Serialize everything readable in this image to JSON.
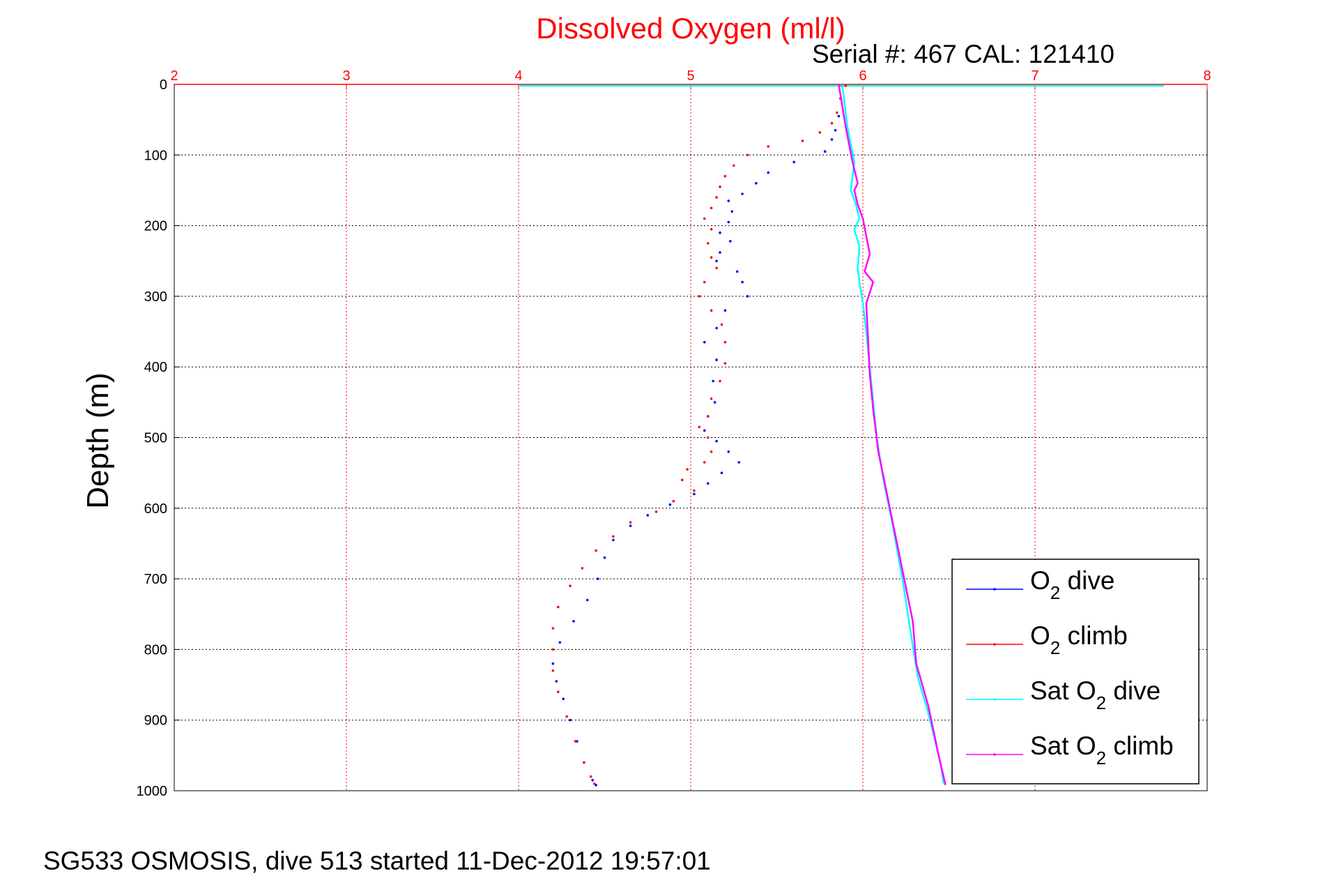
{
  "figure": {
    "title": "Dissolved Oxygen (ml/l)",
    "subtitle": "Serial #: 467  CAL: 121410",
    "ylabel": "Depth (m)",
    "footer": "SG533 OSMOSIS, dive 513 started 11-Dec-2012 19:57:01"
  },
  "colors": {
    "title": "#ff0000",
    "x_axis": "#ff0000",
    "y_axis": "#000000",
    "o2_dive": "#0000ff",
    "o2_climb": "#ff0000",
    "sat_o2_dive": "#00ffff",
    "sat_o2_climb": "#ff00ff"
  },
  "chart_data": {
    "type": "scatter",
    "xlim": [
      2,
      8
    ],
    "ylim": [
      0,
      1000
    ],
    "y_reversed": true,
    "x_axis_position": "top",
    "x_ticks": [
      2,
      3,
      4,
      5,
      6,
      7,
      8
    ],
    "y_ticks": [
      0,
      100,
      200,
      300,
      400,
      500,
      600,
      700,
      800,
      900,
      1000
    ],
    "grid": true,
    "legend_position": "bottom-right",
    "series": [
      {
        "key": "o2_dive",
        "legend_prefix": "O",
        "legend_sub": "2",
        "legend_suffix": " dive",
        "style": "dots",
        "points": [
          [
            5.88,
            2
          ],
          [
            5.87,
            20
          ],
          [
            5.86,
            45
          ],
          [
            5.84,
            65
          ],
          [
            5.82,
            78
          ],
          [
            5.78,
            95
          ],
          [
            5.6,
            110
          ],
          [
            5.45,
            125
          ],
          [
            5.38,
            140
          ],
          [
            5.3,
            155
          ],
          [
            5.22,
            165
          ],
          [
            5.24,
            180
          ],
          [
            5.22,
            195
          ],
          [
            5.17,
            210
          ],
          [
            5.23,
            222
          ],
          [
            5.17,
            238
          ],
          [
            5.15,
            250
          ],
          [
            5.27,
            265
          ],
          [
            5.3,
            280
          ],
          [
            5.33,
            300
          ],
          [
            5.2,
            320
          ],
          [
            5.15,
            345
          ],
          [
            5.08,
            365
          ],
          [
            5.15,
            390
          ],
          [
            5.13,
            420
          ],
          [
            5.14,
            450
          ],
          [
            5.1,
            470
          ],
          [
            5.08,
            490
          ],
          [
            5.15,
            505
          ],
          [
            5.22,
            520
          ],
          [
            5.28,
            535
          ],
          [
            5.18,
            550
          ],
          [
            5.1,
            565
          ],
          [
            5.02,
            580
          ],
          [
            4.88,
            595
          ],
          [
            4.75,
            610
          ],
          [
            4.65,
            625
          ],
          [
            4.55,
            645
          ],
          [
            4.5,
            670
          ],
          [
            4.46,
            700
          ],
          [
            4.4,
            730
          ],
          [
            4.32,
            760
          ],
          [
            4.24,
            790
          ],
          [
            4.2,
            820
          ],
          [
            4.22,
            845
          ],
          [
            4.26,
            870
          ],
          [
            4.3,
            900
          ],
          [
            4.34,
            930
          ],
          [
            4.38,
            960
          ],
          [
            4.43,
            985
          ],
          [
            4.45,
            992
          ]
        ]
      },
      {
        "key": "o2_climb",
        "legend_prefix": "O",
        "legend_sub": "2",
        "legend_suffix": " climb",
        "style": "dots",
        "points": [
          [
            5.9,
            2
          ],
          [
            5.87,
            20
          ],
          [
            5.85,
            40
          ],
          [
            5.82,
            55
          ],
          [
            5.75,
            68
          ],
          [
            5.65,
            80
          ],
          [
            5.45,
            88
          ],
          [
            5.33,
            100
          ],
          [
            5.25,
            115
          ],
          [
            5.2,
            130
          ],
          [
            5.17,
            145
          ],
          [
            5.15,
            160
          ],
          [
            5.12,
            175
          ],
          [
            5.08,
            190
          ],
          [
            5.12,
            205
          ],
          [
            5.1,
            225
          ],
          [
            5.12,
            245
          ],
          [
            5.15,
            260
          ],
          [
            5.08,
            280
          ],
          [
            5.05,
            300
          ],
          [
            5.12,
            320
          ],
          [
            5.18,
            340
          ],
          [
            5.2,
            365
          ],
          [
            5.2,
            395
          ],
          [
            5.17,
            420
          ],
          [
            5.12,
            445
          ],
          [
            5.1,
            470
          ],
          [
            5.05,
            485
          ],
          [
            5.1,
            500
          ],
          [
            5.12,
            520
          ],
          [
            5.08,
            535
          ],
          [
            4.98,
            545
          ],
          [
            4.95,
            560
          ],
          [
            5.02,
            575
          ],
          [
            4.9,
            590
          ],
          [
            4.8,
            605
          ],
          [
            4.65,
            620
          ],
          [
            4.55,
            640
          ],
          [
            4.45,
            660
          ],
          [
            4.37,
            685
          ],
          [
            4.3,
            710
          ],
          [
            4.23,
            740
          ],
          [
            4.2,
            770
          ],
          [
            4.2,
            800
          ],
          [
            4.2,
            830
          ],
          [
            4.23,
            860
          ],
          [
            4.28,
            895
          ],
          [
            4.33,
            930
          ],
          [
            4.38,
            960
          ],
          [
            4.42,
            980
          ],
          [
            4.44,
            990
          ]
        ]
      },
      {
        "key": "sat_o2_dive",
        "legend_prefix": "Sat O",
        "legend_sub": "2",
        "legend_suffix": " dive",
        "style": "line",
        "points": [
          [
            5.88,
            0
          ],
          [
            5.91,
            60
          ],
          [
            5.95,
            110
          ],
          [
            5.93,
            150
          ],
          [
            5.96,
            170
          ],
          [
            5.98,
            190
          ],
          [
            5.95,
            205
          ],
          [
            5.98,
            230
          ],
          [
            5.97,
            260
          ],
          [
            5.98,
            280
          ],
          [
            6.0,
            310
          ],
          [
            6.02,
            350
          ],
          [
            6.04,
            400
          ],
          [
            6.06,
            450
          ],
          [
            6.08,
            500
          ],
          [
            6.12,
            560
          ],
          [
            6.17,
            620
          ],
          [
            6.23,
            700
          ],
          [
            6.28,
            780
          ],
          [
            6.32,
            840
          ],
          [
            6.38,
            890
          ],
          [
            6.45,
            960
          ],
          [
            6.47,
            990
          ]
        ]
      },
      {
        "key": "sat_o2_climb",
        "legend_prefix": "Sat O",
        "legend_sub": "2",
        "legend_suffix": " climb",
        "style": "line",
        "points": [
          [
            5.86,
            0
          ],
          [
            5.9,
            60
          ],
          [
            5.94,
            110
          ],
          [
            5.97,
            140
          ],
          [
            5.95,
            150
          ],
          [
            5.97,
            170
          ],
          [
            6.0,
            190
          ],
          [
            6.02,
            215
          ],
          [
            6.04,
            240
          ],
          [
            6.01,
            265
          ],
          [
            6.06,
            280
          ],
          [
            6.02,
            310
          ],
          [
            6.03,
            360
          ],
          [
            6.04,
            410
          ],
          [
            6.06,
            460
          ],
          [
            6.09,
            520
          ],
          [
            6.14,
            580
          ],
          [
            6.19,
            640
          ],
          [
            6.24,
            700
          ],
          [
            6.29,
            760
          ],
          [
            6.31,
            820
          ],
          [
            6.38,
            880
          ],
          [
            6.44,
            950
          ],
          [
            6.48,
            992
          ]
        ]
      }
    ],
    "surface_segment": {
      "key": "sat_o2_dive",
      "x": [
        4.0,
        7.75
      ],
      "y": 2
    }
  }
}
